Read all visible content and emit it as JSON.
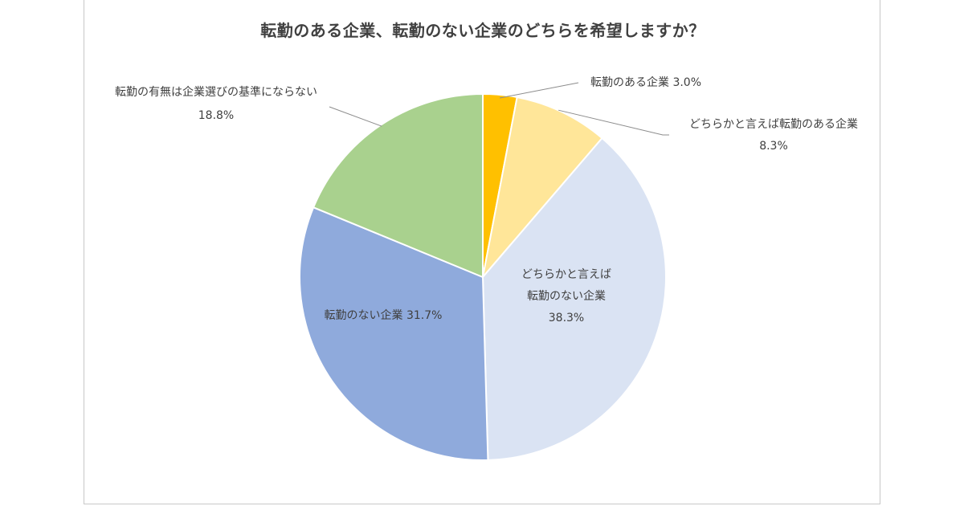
{
  "chart_data": {
    "type": "pie",
    "title": "転勤のある企業、転勤のない企業のどちらを希望しますか？",
    "slices": [
      {
        "label": "転勤のある企業",
        "value": 3.0,
        "display": "3.0%",
        "color": "#ffc000"
      },
      {
        "label": "どちらかと言えば転勤のある企業",
        "value": 8.3,
        "display": "8.3%",
        "color": "#ffe699"
      },
      {
        "label": "どちらかと言えば転勤のない企業",
        "value": 38.3,
        "display": "38.3%",
        "color": "#dae3f3"
      },
      {
        "label": "転勤のない企業",
        "value": 31.7,
        "display": "31.7%",
        "color": "#8faadc"
      },
      {
        "label": "転勤の有無は企業選びの基準にならない",
        "value": 18.8,
        "display": "18.8%",
        "color": "#a9d18e"
      }
    ],
    "start_angle": "12 o'clock",
    "direction": "clockwise",
    "legend": "none",
    "label_texts": {
      "s0": [
        "転勤のある企業 3.0%"
      ],
      "s1": [
        "どちらかと言えば転勤のある企業",
        "8.3%"
      ],
      "s2": [
        "どちらかと言えば",
        "転勤のない企業",
        "38.3%"
      ],
      "s3": [
        "転勤のない企業 31.7%"
      ],
      "s4": [
        "転勤の有無は企業選びの基準にならない",
        "18.8%"
      ]
    }
  }
}
